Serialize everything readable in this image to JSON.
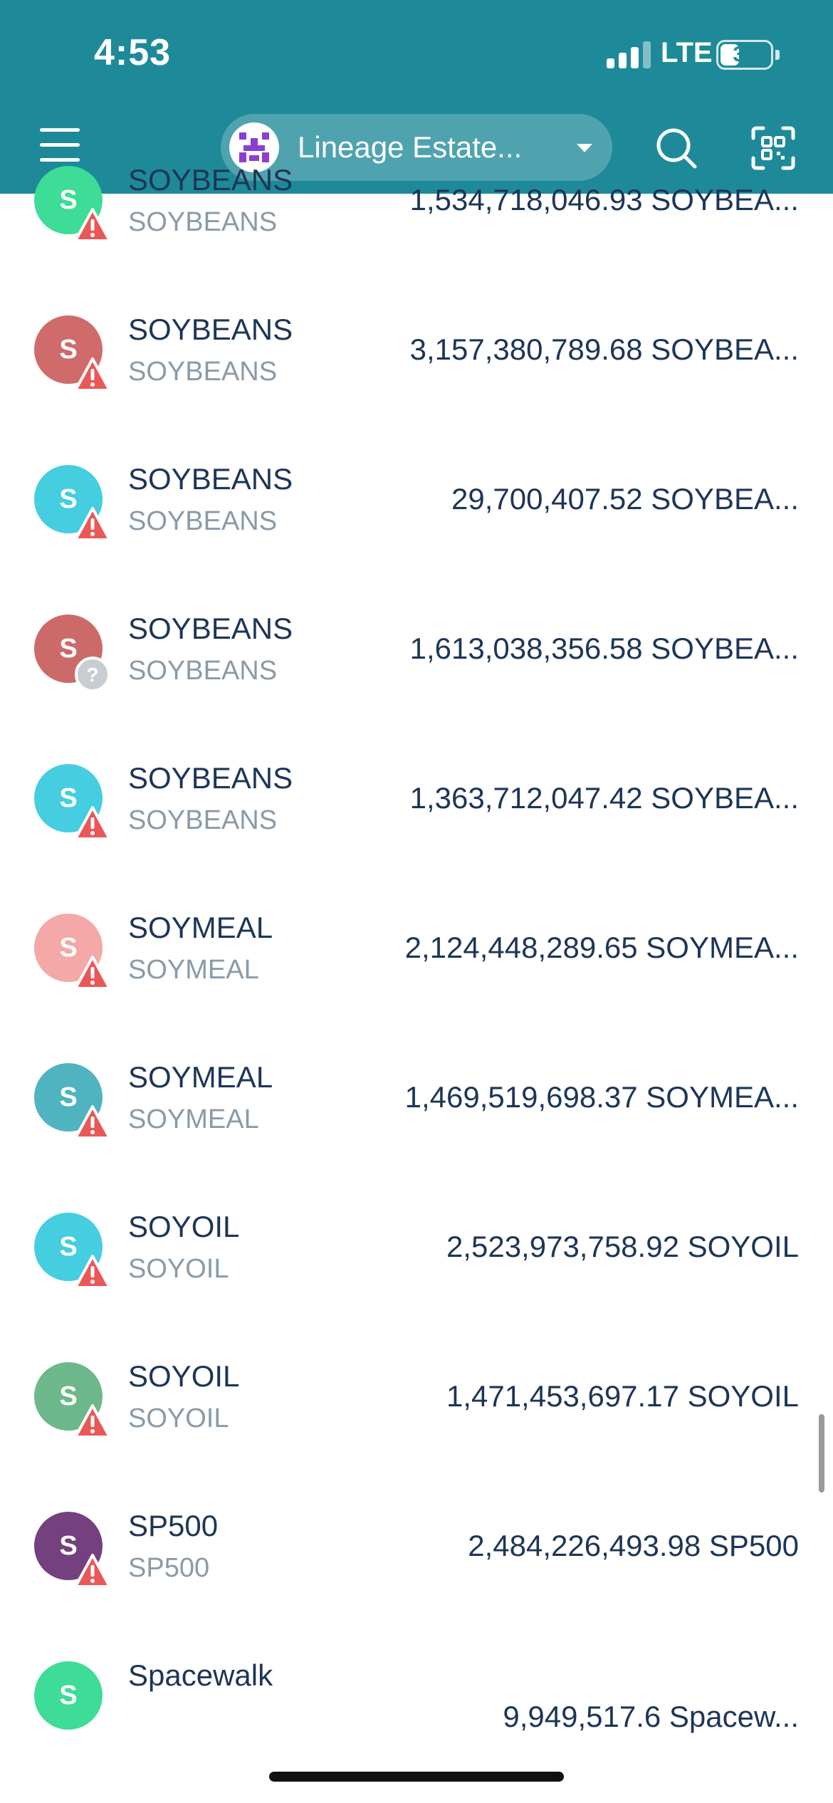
{
  "status_bar": {
    "time": "4:53",
    "network": "LTE",
    "battery": "35"
  },
  "header": {
    "account_name": "Lineage Estate..."
  },
  "colors": {
    "header_bg": "#1E8A99",
    "warning": "#EB5757",
    "unknown_badge": "#C8CDD2",
    "text_primary": "#1D3557",
    "text_secondary": "#8A9AA8"
  },
  "icons": {
    "menu": "menu-icon",
    "account_logo": "account-logo-icon",
    "dropdown": "chevron-down-icon",
    "search": "search-icon",
    "scan": "qr-scan-icon",
    "warning_badge": "warning-icon",
    "unknown_badge": "question-icon"
  },
  "assets": [
    {
      "letter": "S",
      "name": "SOYBEANS",
      "symbol": "SOYBEANS",
      "amount": "1,534,718,046.93 SOYBEA...",
      "color": "#3DDC97",
      "badge": "warning"
    },
    {
      "letter": "S",
      "name": "SOYBEANS",
      "symbol": "SOYBEANS",
      "amount": "3,157,380,789.68 SOYBEA...",
      "color": "#D06B6B",
      "badge": "warning"
    },
    {
      "letter": "S",
      "name": "SOYBEANS",
      "symbol": "SOYBEANS",
      "amount": "29,700,407.52 SOYBEA...",
      "color": "#45CDE0",
      "badge": "warning"
    },
    {
      "letter": "S",
      "name": "SOYBEANS",
      "symbol": "SOYBEANS",
      "amount": "1,613,038,356.58 SOYBEA...",
      "color": "#CC6A6A",
      "badge": "unknown"
    },
    {
      "letter": "S",
      "name": "SOYBEANS",
      "symbol": "SOYBEANS",
      "amount": "1,363,712,047.42 SOYBEA...",
      "color": "#45CDE0",
      "badge": "warning"
    },
    {
      "letter": "S",
      "name": "SOYMEAL",
      "symbol": "SOYMEAL",
      "amount": "2,124,448,289.65 SOYMEA...",
      "color": "#F4A8A8",
      "badge": "warning"
    },
    {
      "letter": "S",
      "name": "SOYMEAL",
      "symbol": "SOYMEAL",
      "amount": "1,469,519,698.37 SOYMEA...",
      "color": "#4FB3C0",
      "badge": "warning"
    },
    {
      "letter": "S",
      "name": "SOYOIL",
      "symbol": "SOYOIL",
      "amount": "2,523,973,758.92 SOYOIL",
      "color": "#45CDE0",
      "badge": "warning"
    },
    {
      "letter": "S",
      "name": "SOYOIL",
      "symbol": "SOYOIL",
      "amount": "1,471,453,697.17 SOYOIL",
      "color": "#6DB88A",
      "badge": "warning"
    },
    {
      "letter": "S",
      "name": "SP500",
      "symbol": "SP500",
      "amount": "2,484,226,493.98 SP500",
      "color": "#74407E",
      "badge": "warning"
    },
    {
      "letter": "S",
      "name": "Spacewalk",
      "symbol": "",
      "amount": "9,949,517.6 Spacew...",
      "color": "#3DDC97",
      "badge": "none"
    }
  ]
}
